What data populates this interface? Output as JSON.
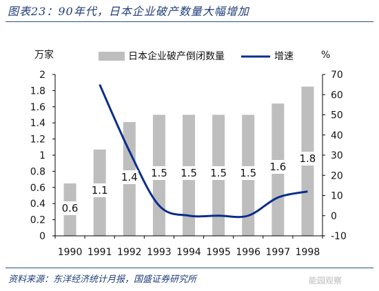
{
  "title": "图表23：90年代，日本企业破产数量大幅增加",
  "source": "资料来源：东洋经济统计月报，国盛证券研究所",
  "watermark": "能园观察",
  "chart_data": {
    "type": "bar",
    "categories": [
      "1990",
      "1991",
      "1992",
      "1993",
      "1994",
      "1995",
      "1996",
      "1997",
      "1998"
    ],
    "series": [
      {
        "name": "日本企业破产倒闭数量",
        "type": "bar",
        "axis": "left",
        "color": "#BEBEBE",
        "values": [
          0.65,
          1.07,
          1.41,
          1.5,
          1.5,
          1.5,
          1.5,
          1.64,
          1.85
        ],
        "data_labels": [
          "0.6",
          "1.1",
          "1.4",
          "1.5",
          "1.5",
          "1.5",
          "1.5",
          "1.6",
          "1.8"
        ]
      },
      {
        "name": "增速",
        "type": "line",
        "axis": "right",
        "color": "#0A2D8C",
        "values": [
          null,
          65,
          32,
          5,
          0,
          0,
          0,
          9,
          12
        ]
      }
    ],
    "y_left": {
      "label": "万家",
      "ylim": [
        0,
        2
      ],
      "ticks": [
        "0",
        "0.2",
        "0.4",
        "0.6",
        "0.8",
        "1",
        "1.2",
        "1.4",
        "1.6",
        "1.8",
        "2"
      ]
    },
    "y_right": {
      "label": "%",
      "ylim": [
        -10,
        70
      ],
      "ticks": [
        "-10",
        "0",
        "10",
        "20",
        "30",
        "40",
        "50",
        "60",
        "70"
      ]
    },
    "legend": {
      "placement": "top"
    },
    "grid": false
  }
}
